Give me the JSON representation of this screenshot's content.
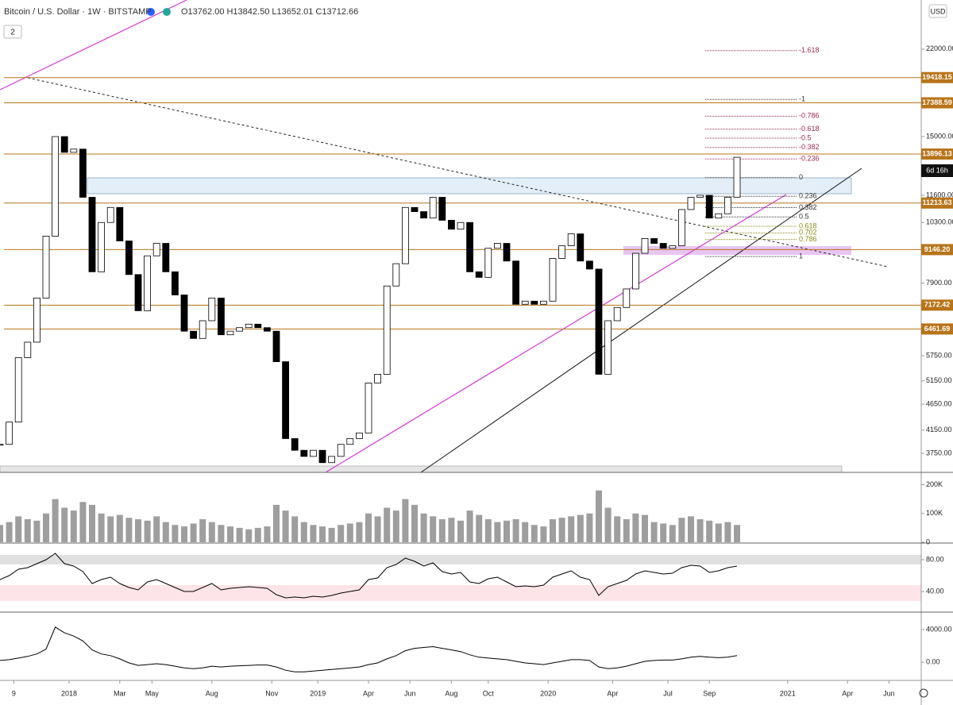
{
  "header": {
    "symbol": "Bitcoin / U.S. Dollar · 1W · BITSTAMP",
    "ohlc": "O13762.00 H13842.50 L13652.01 C13712.66",
    "badge": "2",
    "currency": "USD",
    "countdown": "6d 16h"
  },
  "chart_data": [
    {
      "type": "candlestick",
      "log_scale": true,
      "grid": false,
      "up_color": "#ffffff",
      "down_color": "#000000",
      "xlim": [
        -15,
        185
      ],
      "ylim": [
        3450,
        27270
      ],
      "xticks": [
        {
          "value": -12,
          "label": "9"
        },
        {
          "value": 0,
          "label": "2018"
        },
        {
          "value": 11,
          "label": "Mar"
        },
        {
          "value": 18,
          "label": "May"
        },
        {
          "value": 31,
          "label": "Aug"
        },
        {
          "value": 44,
          "label": "Nov"
        },
        {
          "value": 54,
          "label": "2019"
        },
        {
          "value": 65,
          "label": "Apr"
        },
        {
          "value": 74,
          "label": "Jun"
        },
        {
          "value": 83,
          "label": "Aug"
        },
        {
          "value": 91,
          "label": "Oct"
        },
        {
          "value": 104,
          "label": "2020"
        },
        {
          "value": 118,
          "label": "Apr"
        },
        {
          "value": 130,
          "label": "Jul"
        },
        {
          "value": 139,
          "label": "Sep"
        },
        {
          "value": 156,
          "label": "2021"
        },
        {
          "value": 169,
          "label": "Apr"
        },
        {
          "value": 178,
          "label": "Jun"
        }
      ],
      "yticks": [
        {
          "value": 22000,
          "label": "22000.00"
        },
        {
          "value": 15000,
          "label": "15000.00"
        },
        {
          "value": 11600,
          "label": "11600.00"
        },
        {
          "value": 10300,
          "label": "10300.00"
        },
        {
          "value": 7900,
          "label": "7900.00"
        },
        {
          "value": 5750,
          "label": "5750.00"
        },
        {
          "value": 5150,
          "label": "5150.00"
        },
        {
          "value": 4650,
          "label": "4650.00"
        },
        {
          "value": 4150,
          "label": "4150.00"
        },
        {
          "value": 3750,
          "label": "3750.00"
        }
      ],
      "x": [
        -15,
        -13,
        -11,
        -9,
        -7,
        -5,
        -3,
        -1,
        1,
        3,
        5,
        7,
        9,
        11,
        13,
        15,
        17,
        19,
        21,
        23,
        25,
        27,
        29,
        31,
        33,
        35,
        37,
        39,
        41,
        43,
        45,
        47,
        49,
        51,
        53,
        55,
        57,
        59,
        61,
        63,
        65,
        67,
        69,
        71,
        73,
        75,
        77,
        79,
        81,
        83,
        85,
        87,
        89,
        91,
        93,
        95,
        97,
        99,
        101,
        103,
        105,
        107,
        109,
        111,
        113,
        115,
        117,
        119,
        121,
        123,
        125,
        127,
        129,
        131,
        133,
        135,
        137,
        139,
        141,
        143,
        145
      ],
      "values": [
        3900,
        4300,
        5700,
        6100,
        7400,
        9700,
        15000,
        14000,
        14200,
        11500,
        8300,
        10300,
        11000,
        9500,
        8200,
        7000,
        8900,
        9400,
        8300,
        7500,
        6400,
        6200,
        6700,
        7400,
        6300,
        6400,
        6500,
        6600,
        6500,
        6400,
        5600,
        4000,
        3800,
        3700,
        3800,
        3600,
        3700,
        3900,
        4000,
        4100,
        5100,
        5300,
        7800,
        8600,
        11000,
        10800,
        10500,
        11500,
        10400,
        10000,
        10300,
        8300,
        8100,
        9200,
        9400,
        8700,
        7200,
        7300,
        7200,
        7300,
        8800,
        9300,
        9800,
        8700,
        8400,
        5300,
        6700,
        7100,
        7700,
        9000,
        9600,
        9400,
        9200,
        9300,
        10900,
        11500,
        11600,
        10500,
        10700,
        11500,
        13700
      ],
      "levels": [
        {
          "value": 19418.15,
          "label": "19418.15"
        },
        {
          "value": 17388.59,
          "label": "17388.59"
        },
        {
          "value": 13896.13,
          "label": "13896.13"
        },
        {
          "value": 11213.63,
          "label": "11213.63"
        },
        {
          "value": 9146.2,
          "label": "9146.20"
        },
        {
          "value": 7172.42,
          "label": "7172.42"
        },
        {
          "value": 6461.69,
          "label": "6461.69"
        }
      ],
      "level_color": "#b8741a",
      "fib": [
        {
          "value": 21850,
          "label": "-1.618",
          "color": "#9c2755"
        },
        {
          "value": 17650,
          "label": "-1",
          "color": "#333333"
        },
        {
          "value": 16400,
          "label": "-0.786",
          "color": "#9c2755"
        },
        {
          "value": 15500,
          "label": "-0.618",
          "color": "#9c2755"
        },
        {
          "value": 14900,
          "label": "-0.5",
          "color": "#9c2755"
        },
        {
          "value": 14300,
          "label": "-0.382",
          "color": "#9c2755"
        },
        {
          "value": 13600,
          "label": "-0.236",
          "color": "#9c2755"
        },
        {
          "value": 12530,
          "label": "0",
          "color": "#333333"
        },
        {
          "value": 11550,
          "label": "0.236",
          "color": "#333333"
        },
        {
          "value": 10990,
          "label": "0.382",
          "color": "#333333"
        },
        {
          "value": 10550,
          "label": "0.5",
          "color": "#333333"
        },
        {
          "value": 10130,
          "label": "0.618",
          "color": "#8a8a14"
        },
        {
          "value": 9840,
          "label": "0.702",
          "color": "#8a8a14"
        },
        {
          "value": 9560,
          "label": "0.786",
          "color": "#8a8a14"
        },
        {
          "value": 8875,
          "label": "1",
          "color": "#333333"
        }
      ]
    },
    {
      "type": "bar",
      "color": "#9e9e9e",
      "ylim": [
        0,
        240
      ],
      "yticks": [
        {
          "value": 200,
          "label": "200K"
        },
        {
          "value": 100,
          "label": "100K"
        },
        0
      ],
      "values": [
        60,
        70,
        90,
        80,
        75,
        100,
        150,
        120,
        110,
        140,
        130,
        100,
        90,
        95,
        85,
        80,
        75,
        90,
        70,
        60,
        55,
        65,
        80,
        70,
        60,
        55,
        50,
        45,
        50,
        55,
        130,
        110,
        90,
        70,
        60,
        55,
        50,
        60,
        65,
        70,
        100,
        90,
        120,
        110,
        150,
        130,
        100,
        90,
        80,
        85,
        75,
        110,
        95,
        80,
        70,
        75,
        80,
        70,
        60,
        55,
        80,
        85,
        90,
        95,
        100,
        180,
        120,
        90,
        80,
        100,
        95,
        70,
        65,
        60,
        85,
        90,
        80,
        75,
        65,
        70,
        60
      ]
    },
    {
      "type": "line",
      "color": "#000000",
      "ylim": [
        15,
        99
      ],
      "yticks": [
        {
          "value": 80,
          "label": "80.00"
        },
        {
          "value": 40,
          "label": "40.00"
        }
      ],
      "values": [
        55,
        60,
        68,
        70,
        75,
        80,
        88,
        75,
        72,
        65,
        50,
        55,
        58,
        50,
        45,
        42,
        52,
        55,
        50,
        45,
        40,
        40,
        45,
        50,
        42,
        44,
        45,
        46,
        45,
        44,
        36,
        32,
        33,
        32,
        34,
        33,
        35,
        38,
        40,
        42,
        55,
        57,
        70,
        74,
        82,
        78,
        72,
        76,
        65,
        62,
        64,
        52,
        50,
        56,
        58,
        52,
        46,
        47,
        46,
        48,
        58,
        62,
        66,
        58,
        55,
        35,
        46,
        50,
        54,
        62,
        66,
        64,
        62,
        63,
        70,
        73,
        72,
        64,
        66,
        70,
        72
      ]
    },
    {
      "type": "line",
      "color": "#000000",
      "ylim": [
        -2244,
        5950
      ],
      "yticks": [
        {
          "value": 4000,
          "label": "4000.00"
        },
        {
          "value": 0,
          "label": "0.00"
        }
      ],
      "values": [
        200,
        300,
        500,
        700,
        1000,
        1600,
        4300,
        3600,
        3200,
        2600,
        1500,
        1000,
        800,
        400,
        -100,
        -400,
        -300,
        -200,
        -300,
        -500,
        -700,
        -800,
        -700,
        -500,
        -600,
        -500,
        -450,
        -400,
        -350,
        -350,
        -600,
        -1000,
        -1200,
        -1200,
        -1100,
        -1000,
        -900,
        -800,
        -700,
        -600,
        -300,
        -100,
        400,
        800,
        1400,
        1700,
        1800,
        1900,
        1700,
        1500,
        1300,
        900,
        600,
        500,
        400,
        300,
        100,
        -100,
        -200,
        -300,
        -100,
        100,
        300,
        300,
        200,
        -600,
        -800,
        -700,
        -500,
        -200,
        100,
        200,
        250,
        250,
        400,
        600,
        700,
        600,
        550,
        600,
        800
      ]
    }
  ]
}
